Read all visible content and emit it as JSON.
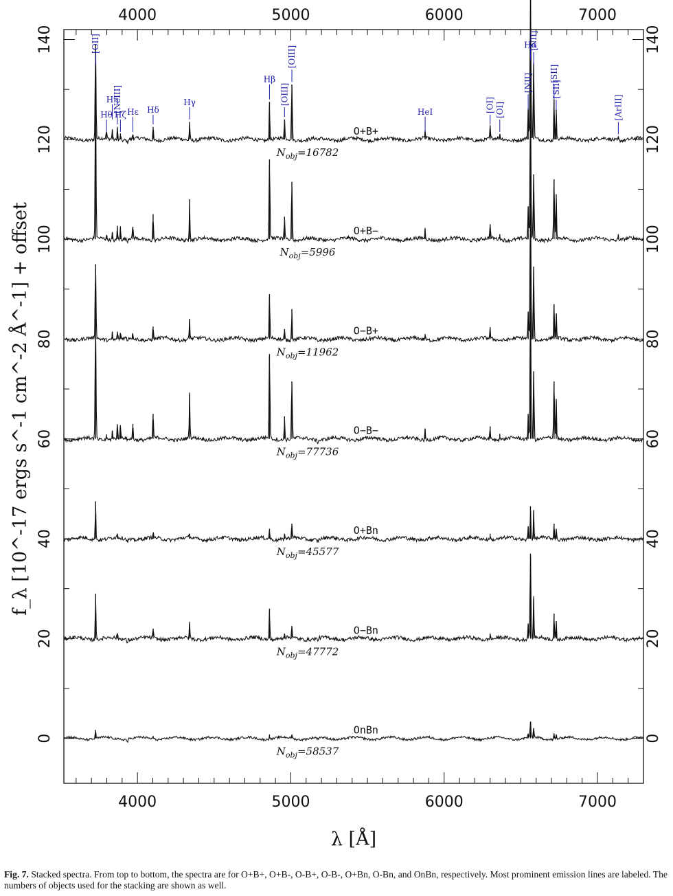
{
  "figure": {
    "caption_label": "Fig. 7.",
    "caption_text": "Stacked spectra. From top to bottom, the spectra are for O+B+, O+B-, O-B+, O-B-, O+Bn, O-Bn, and OnBn, respectively. Most prominent emission lines are labeled. The numbers of objects used for the stacking are shown as well."
  },
  "chart_data": {
    "type": "line",
    "title": "",
    "xlabel": "λ [Å]",
    "ylabel": "f_λ [10^-17 ergs s^-1 cm^-2 Å^-1] + offset",
    "xlim": [
      3520,
      7300
    ],
    "ylim": [
      -9,
      142
    ],
    "x_ticks": [
      4000,
      5000,
      6000,
      7000
    ],
    "y_ticks": [
      0,
      20,
      40,
      60,
      80,
      100,
      120,
      140
    ],
    "grid": false,
    "series": [
      {
        "name": "O+B+",
        "nobj": "16782",
        "offset": 120,
        "peaks": [
          [
            3727,
            19
          ],
          [
            3798,
            1.5
          ],
          [
            3836,
            2
          ],
          [
            3869,
            2.5
          ],
          [
            3889,
            1.2
          ],
          [
            3970,
            1
          ],
          [
            4102,
            2.5
          ],
          [
            4340,
            3.5
          ],
          [
            4861,
            7.5
          ],
          [
            4959,
            4
          ],
          [
            5007,
            11
          ],
          [
            5876,
            1.5
          ],
          [
            6300,
            2.5
          ],
          [
            6363,
            1
          ],
          [
            6548,
            6
          ],
          [
            6563,
            30
          ],
          [
            6584,
            15
          ],
          [
            6717,
            8
          ],
          [
            6731,
            6
          ],
          [
            7136,
            0.6
          ]
        ]
      },
      {
        "name": "O+B−",
        "nobj": "5996",
        "offset": 100,
        "peaks": [
          [
            3727,
            30
          ],
          [
            3798,
            0.8
          ],
          [
            3836,
            1.4
          ],
          [
            3869,
            2.7
          ],
          [
            3889,
            2.6
          ],
          [
            3970,
            2.5
          ],
          [
            4102,
            5
          ],
          [
            4340,
            8
          ],
          [
            4861,
            16
          ],
          [
            4959,
            4.5
          ],
          [
            5007,
            11.5
          ],
          [
            5876,
            2
          ],
          [
            6300,
            3
          ],
          [
            6363,
            1
          ],
          [
            6548,
            6.5
          ],
          [
            6563,
            30
          ],
          [
            6584,
            13
          ],
          [
            6717,
            12
          ],
          [
            6731,
            9
          ],
          [
            7136,
            1
          ]
        ]
      },
      {
        "name": "O−B+",
        "nobj": "11962",
        "offset": 80,
        "peaks": [
          [
            3727,
            15
          ],
          [
            3836,
            1.5
          ],
          [
            3869,
            1.5
          ],
          [
            3889,
            1.2
          ],
          [
            3970,
            1
          ],
          [
            4102,
            2.5
          ],
          [
            4340,
            4
          ],
          [
            4861,
            9
          ],
          [
            4959,
            2
          ],
          [
            5007,
            6
          ],
          [
            5876,
            1
          ],
          [
            6300,
            2
          ],
          [
            6548,
            5.5
          ],
          [
            6563,
            30
          ],
          [
            6584,
            14.5
          ],
          [
            6717,
            7
          ],
          [
            6731,
            5
          ]
        ]
      },
      {
        "name": "O−B−",
        "nobj": "77736",
        "offset": 60,
        "peaks": [
          [
            3727,
            24
          ],
          [
            3798,
            0.9
          ],
          [
            3836,
            1.6
          ],
          [
            3869,
            2.8
          ],
          [
            3889,
            2.5
          ],
          [
            3970,
            3
          ],
          [
            4102,
            5
          ],
          [
            4340,
            9
          ],
          [
            4861,
            17
          ],
          [
            4959,
            4.5
          ],
          [
            5007,
            11.5
          ],
          [
            5876,
            2
          ],
          [
            6300,
            2.5
          ],
          [
            6363,
            1
          ],
          [
            6548,
            5
          ],
          [
            6563,
            30
          ],
          [
            6584,
            13.5
          ],
          [
            6717,
            11.5
          ],
          [
            6731,
            8
          ]
        ]
      },
      {
        "name": "O+Bn",
        "nobj": "45577",
        "offset": 40,
        "peaks": [
          [
            3727,
            7.5
          ],
          [
            3869,
            1
          ],
          [
            4102,
            1
          ],
          [
            4340,
            1
          ],
          [
            4861,
            2
          ],
          [
            4959,
            1
          ],
          [
            5007,
            3
          ],
          [
            6300,
            1
          ],
          [
            6548,
            2.5
          ],
          [
            6563,
            6.5
          ],
          [
            6584,
            5.5
          ],
          [
            6717,
            3
          ],
          [
            6731,
            2
          ]
        ]
      },
      {
        "name": "O−Bn",
        "nobj": "47772",
        "offset": 20,
        "peaks": [
          [
            3727,
            9
          ],
          [
            3869,
            1
          ],
          [
            4102,
            2
          ],
          [
            4340,
            3
          ],
          [
            4861,
            6
          ],
          [
            4959,
            1
          ],
          [
            5007,
            2.5
          ],
          [
            6300,
            1
          ],
          [
            6548,
            3
          ],
          [
            6563,
            17
          ],
          [
            6584,
            8
          ],
          [
            6717,
            5
          ],
          [
            6731,
            3.5
          ]
        ]
      },
      {
        "name": "OnBn",
        "nobj": "58537",
        "offset": 0,
        "peaks": [
          [
            3727,
            1.7
          ],
          [
            4102,
            0.5
          ],
          [
            4861,
            0.8
          ],
          [
            5007,
            0.8
          ],
          [
            6548,
            0.8
          ],
          [
            6563,
            3.3
          ],
          [
            6584,
            2
          ],
          [
            6717,
            1
          ],
          [
            6731,
            0.8
          ]
        ]
      }
    ],
    "line_labels": [
      {
        "text": "[OII]",
        "wavelength": 3727,
        "tip": 135,
        "rotate": true
      },
      {
        "text": "Hθ",
        "wavelength": 3798,
        "tip": 121.5,
        "rotate": false
      },
      {
        "text": "Hη",
        "wavelength": 3836,
        "tip": 124,
        "rotate": false
      },
      {
        "text": "[NeIII]",
        "wavelength": 3869,
        "tip": 123,
        "rotate": true
      },
      {
        "text": "Hζ",
        "wavelength": 3889,
        "tip": 121.5,
        "rotate": false
      },
      {
        "text": "Hε",
        "wavelength": 3970,
        "tip": 121.5,
        "rotate": false
      },
      {
        "text": "Hδ",
        "wavelength": 4102,
        "tip": 123,
        "rotate": false
      },
      {
        "text": "Hγ",
        "wavelength": 4340,
        "tip": 124,
        "rotate": false
      },
      {
        "text": "Hβ",
        "wavelength": 4861,
        "tip": 128,
        "rotate": false
      },
      {
        "text": "[OIII]",
        "wavelength": 4959,
        "tip": 124.5,
        "rotate": true
      },
      {
        "text": "[OIII]",
        "wavelength": 5007,
        "tip": 131.5,
        "rotate": true
      },
      {
        "text": "HeI",
        "wavelength": 5876,
        "tip": 121.5,
        "rotate": false
      },
      {
        "text": "[OI]",
        "wavelength": 6300,
        "tip": 123,
        "rotate": true
      },
      {
        "text": "[OI]",
        "wavelength": 6363,
        "tip": 121.5,
        "rotate": true
      },
      {
        "text": "[NII]",
        "wavelength": 6548,
        "tip": 126,
        "rotate": true
      },
      {
        "text": "Hα",
        "wavelength": 6563,
        "tip": 136,
        "rotate": false
      },
      {
        "text": "[NII]",
        "wavelength": 6584,
        "tip": 135,
        "rotate": true
      },
      {
        "text": "[SII]",
        "wavelength": 6717,
        "tip": 128,
        "rotate": true
      },
      {
        "text": "[SII]",
        "wavelength": 6731,
        "tip": 126,
        "rotate": true
      },
      {
        "text": "[ArIII]",
        "wavelength": 7136,
        "tip": 121,
        "rotate": true
      }
    ]
  }
}
